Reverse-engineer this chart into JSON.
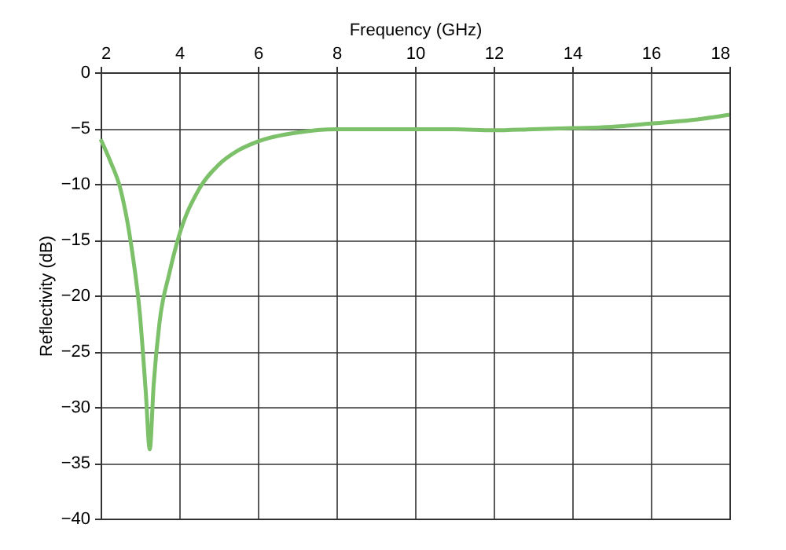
{
  "chart_data": {
    "type": "line",
    "xlabel": "Frequency (GHz)",
    "ylabel": "Reflectivity (dB)",
    "xlim": [
      2,
      18
    ],
    "xticks": [
      2,
      4,
      6,
      8,
      10,
      12,
      14,
      16,
      18
    ],
    "ylim": [
      -40,
      0
    ],
    "yticks": [
      -40,
      -35,
      -30,
      -25,
      -20,
      -15,
      -10,
      -5,
      0
    ],
    "grid": true,
    "series": [
      {
        "color": "#7cc06a",
        "x": [
          2,
          2.25,
          2.5,
          2.8,
          3,
          3.15,
          3.25,
          3.35,
          3.5,
          3.75,
          4,
          4.5,
          5,
          5.5,
          6,
          7,
          8,
          9,
          10,
          11,
          12,
          13,
          14,
          15,
          16,
          17,
          18
        ],
        "values": [
          -6,
          -8,
          -10.4,
          -16,
          -21.7,
          -28.7,
          -33.8,
          -28,
          -22.4,
          -18,
          -14.6,
          -10.5,
          -8.3,
          -7,
          -6.2,
          -5.4,
          -5.1,
          -5.1,
          -5.1,
          -5.1,
          -5.2,
          -5.1,
          -5,
          -4.9,
          -4.6,
          -4.3,
          -3.8
        ]
      }
    ]
  }
}
